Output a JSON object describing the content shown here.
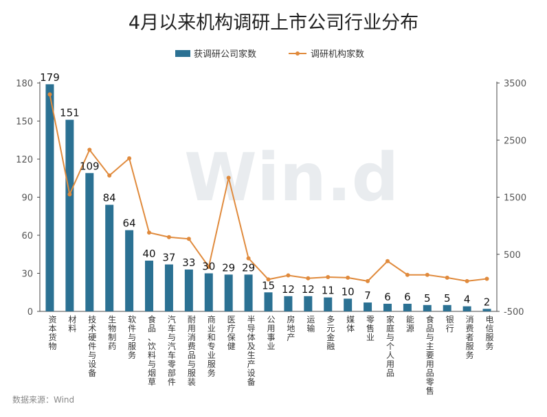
{
  "chart_data": {
    "type": "bar",
    "title": "4月以来机构调研上市公司行业分布",
    "source": "数据来源：Wind",
    "watermark": "Win.d",
    "legend": {
      "placement": "top-center"
    },
    "colors": {
      "bar": "#2b7193",
      "line": "#e08a3c"
    },
    "categories": [
      "资本货物",
      "材料",
      "技术硬件与设备",
      "生物制药",
      "软件与服务",
      "食品、饮料与烟草",
      "汽车与汽车零部件",
      "耐用消费品与服装",
      "商业和专业服务",
      "医疗保健",
      "半导体及生产设备",
      "公用事业",
      "房地产",
      "运输",
      "多元金融",
      "媒体",
      "零售业",
      "家庭与个人用品",
      "能源",
      "食品与主要用品零售",
      "银行",
      "消费者服务",
      "电信服务"
    ],
    "series": [
      {
        "name": "获调研公司家数",
        "type": "bar",
        "axis": "left",
        "values": [
          179,
          151,
          109,
          84,
          64,
          40,
          37,
          33,
          30,
          29,
          29,
          15,
          12,
          12,
          11,
          10,
          7,
          6,
          6,
          5,
          5,
          4,
          2
        ]
      },
      {
        "name": "调研机构家数",
        "type": "line",
        "axis": "right",
        "values": [
          3300,
          1550,
          2330,
          1880,
          2180,
          880,
          800,
          770,
          280,
          1840,
          430,
          60,
          130,
          80,
          100,
          90,
          30,
          380,
          140,
          140,
          90,
          30,
          70
        ]
      }
    ],
    "y_left": {
      "min": 0,
      "max": 180,
      "ticks": [
        0,
        30,
        60,
        90,
        120,
        150,
        180
      ]
    },
    "y_right": {
      "min": -500,
      "max": 3500,
      "ticks": [
        -500,
        500,
        1500,
        2500,
        3500
      ]
    }
  }
}
